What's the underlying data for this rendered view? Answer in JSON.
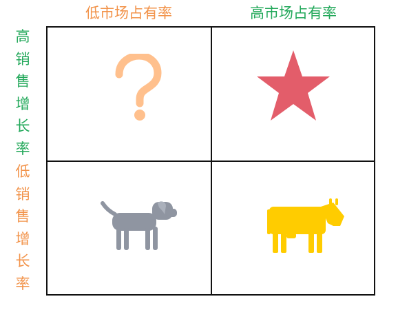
{
  "columns": [
    {
      "label": "低市场占有率",
      "color": "#f2934a"
    },
    {
      "label": "高市场占有率",
      "color": "#22a85a"
    }
  ],
  "rows": [
    {
      "label": "高销售增长率",
      "color": "#22a85a"
    },
    {
      "label": "低销售增长率",
      "color": "#f2934a"
    }
  ],
  "cells": [
    {
      "position": "top-left",
      "icon": "question-mark-icon",
      "color": "#ffc08d"
    },
    {
      "position": "top-right",
      "icon": "star-icon",
      "color": "#e35d6a"
    },
    {
      "position": "bottom-left",
      "icon": "dog-icon",
      "color": "#8f95a1"
    },
    {
      "position": "bottom-right",
      "icon": "cow-icon",
      "color": "#ffcc00"
    }
  ]
}
